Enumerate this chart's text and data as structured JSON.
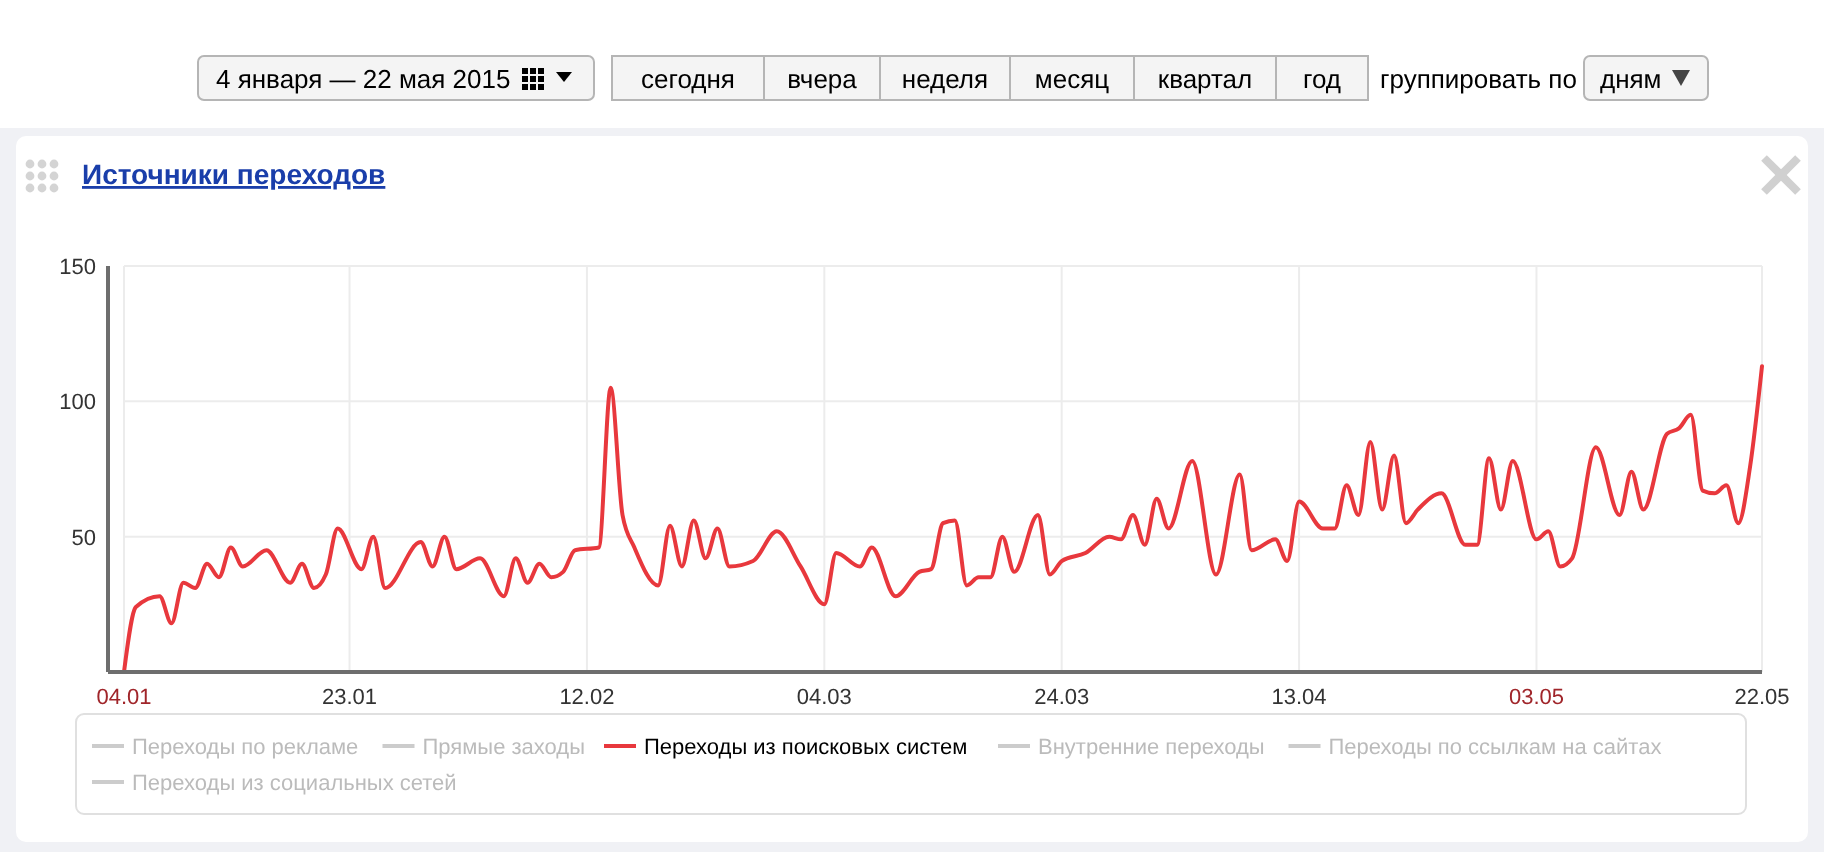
{
  "chart_data": {
    "type": "line",
    "title": "Источники переходов",
    "annotations": [
      "4 января — 22 мая 2015",
      "сегодня",
      "вчера",
      "неделя",
      "месяц",
      "квартал",
      "год",
      "группировать по",
      "дням"
    ],
    "xlim": [
      "2015-01-04",
      "2015-05-22"
    ],
    "xticks": [
      {
        "value": "2015-01-04",
        "label": "04.01"
      },
      {
        "value": "2015-01-23",
        "label": "23.01"
      },
      {
        "value": "2015-02-12",
        "label": "12.02"
      },
      {
        "value": "2015-03-04",
        "label": "04.03"
      },
      {
        "value": "2015-03-24",
        "label": "24.03"
      },
      {
        "value": "2015-04-13",
        "label": "13.04"
      },
      {
        "value": "2015-05-03",
        "label": "03.05"
      },
      {
        "value": "2015-05-22",
        "label": "22.05"
      }
    ],
    "ylim": [
      0,
      150
    ],
    "yticks": [
      50,
      100,
      150
    ],
    "grid": true,
    "legend": "bottom",
    "marker": "none",
    "line_style": "solid",
    "series": [
      {
        "name": "Переходы по рекламе",
        "color": "#cccccc"
      },
      {
        "name": "Прямые заходы",
        "color": "#cccccc"
      },
      {
        "name": "Переходы из поисковых систем",
        "color": "#e8383d",
        "x": [
          "2015-01-04",
          "2015-01-05",
          "2015-01-07",
          "2015-01-08",
          "2015-01-09",
          "2015-01-10",
          "2015-01-11",
          "2015-01-12",
          "2015-01-13",
          "2015-01-14",
          "2015-01-16",
          "2015-01-18",
          "2015-01-19",
          "2015-01-20",
          "2015-01-21",
          "2015-01-22",
          "2015-01-24",
          "2015-01-25",
          "2015-01-26",
          "2015-01-29",
          "2015-01-30",
          "2015-01-31",
          "2015-02-01",
          "2015-02-03",
          "2015-02-05",
          "2015-02-06",
          "2015-02-07",
          "2015-02-08",
          "2015-02-09",
          "2015-02-10",
          "2015-02-11",
          "2015-02-13",
          "2015-02-14",
          "2015-02-15",
          "2015-02-16",
          "2015-02-18",
          "2015-02-19",
          "2015-02-20",
          "2015-02-21",
          "2015-02-22",
          "2015-02-23",
          "2015-02-24",
          "2015-02-26",
          "2015-02-28",
          "2015-03-02",
          "2015-03-04",
          "2015-03-05",
          "2015-03-07",
          "2015-03-08",
          "2015-03-10",
          "2015-03-12",
          "2015-03-13",
          "2015-03-14",
          "2015-03-15",
          "2015-03-16",
          "2015-03-17",
          "2015-03-18",
          "2015-03-19",
          "2015-03-20",
          "2015-03-22",
          "2015-03-23",
          "2015-03-24",
          "2015-03-26",
          "2015-03-28",
          "2015-03-29",
          "2015-03-30",
          "2015-03-31",
          "2015-04-01",
          "2015-04-02",
          "2015-04-04",
          "2015-04-06",
          "2015-04-08",
          "2015-04-09",
          "2015-04-11",
          "2015-04-12",
          "2015-04-13",
          "2015-04-15",
          "2015-04-16",
          "2015-04-17",
          "2015-04-18",
          "2015-04-19",
          "2015-04-20",
          "2015-04-21",
          "2015-04-22",
          "2015-04-23",
          "2015-04-25",
          "2015-04-27",
          "2015-04-28",
          "2015-04-29",
          "2015-04-30",
          "2015-05-01",
          "2015-05-03",
          "2015-05-04",
          "2015-05-05",
          "2015-05-06",
          "2015-05-08",
          "2015-05-10",
          "2015-05-11",
          "2015-05-12",
          "2015-05-14",
          "2015-05-15",
          "2015-05-16",
          "2015-05-17",
          "2015-05-18",
          "2015-05-19",
          "2015-05-20",
          "2015-05-21",
          "2015-05-22"
        ],
        "values": [
          0,
          24,
          28,
          18,
          33,
          31,
          40,
          35,
          46,
          39,
          45,
          33,
          40,
          31,
          36,
          53,
          38,
          50,
          31,
          48,
          39,
          50,
          38,
          42,
          28,
          42,
          33,
          40,
          35,
          37,
          45,
          46,
          105,
          58,
          46,
          32,
          54,
          39,
          56,
          42,
          53,
          39,
          41,
          52,
          39,
          25,
          44,
          39,
          46,
          28,
          37,
          38,
          55,
          56,
          32,
          35,
          35,
          50,
          37,
          58,
          36,
          41,
          44,
          50,
          49,
          58,
          47,
          64,
          53,
          78,
          36,
          73,
          45,
          49,
          41,
          63,
          53,
          53,
          69,
          58,
          85,
          60,
          80,
          55,
          60,
          66,
          47,
          47,
          79,
          60,
          78,
          49,
          52,
          39,
          42,
          83,
          58,
          74,
          60,
          88,
          90,
          95,
          67,
          66,
          69,
          55,
          76,
          113
        ]
      },
      {
        "name": "Внутренние переходы",
        "color": "#cccccc"
      },
      {
        "name": "Переходы по ссылкам на сайтах",
        "color": "#cccccc"
      },
      {
        "name": "Переходы из социальных сетей",
        "color": "#cccccc"
      }
    ]
  }
}
